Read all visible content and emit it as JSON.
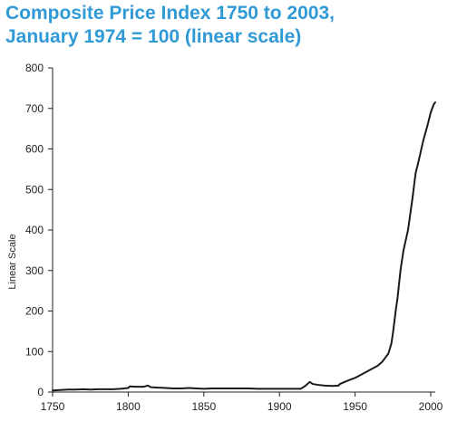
{
  "title_lines": [
    "Composite Price Index 1750 to 2003,",
    "January 1974 = 100 (linear scale)"
  ],
  "colors": {
    "title": "#2f9ad6",
    "line": "#1a1a1a",
    "axis": "#222222"
  },
  "chart_data": {
    "type": "line",
    "title": "Composite Price Index 1750 to 2003, January 1974 = 100 (linear scale)",
    "xlabel": "",
    "ylabel": "Linear Scale",
    "xlim": [
      1750,
      2003
    ],
    "ylim": [
      0,
      800
    ],
    "xticks": [
      1750,
      1800,
      1850,
      1900,
      1950,
      2000
    ],
    "yticks": [
      0,
      100,
      200,
      300,
      400,
      500,
      600,
      700,
      800
    ],
    "grid": false,
    "legend": "none",
    "series": [
      {
        "x": [
          1750,
          1755,
          1760,
          1765,
          1770,
          1775,
          1780,
          1785,
          1790,
          1795,
          1800,
          1801,
          1805,
          1810,
          1813,
          1815,
          1820,
          1825,
          1830,
          1835,
          1840,
          1845,
          1850,
          1855,
          1860,
          1865,
          1870,
          1875,
          1880,
          1885,
          1890,
          1895,
          1900,
          1905,
          1910,
          1914,
          1917,
          1920,
          1922,
          1925,
          1930,
          1935,
          1939,
          1940,
          1945,
          1950,
          1955,
          1960,
          1965,
          1968,
          1970,
          1972,
          1974,
          1975,
          1976,
          1977,
          1978,
          1980,
          1982,
          1985,
          1988,
          1990,
          1992,
          1995,
          1998,
          2000,
          2002,
          2003
        ],
        "y": [
          4,
          5,
          6,
          6,
          7,
          6,
          7,
          7,
          7,
          8,
          10,
          14,
          13,
          13,
          16,
          12,
          11,
          10,
          9,
          9,
          10,
          9,
          8,
          9,
          9,
          9,
          9,
          9,
          9,
          8,
          8,
          8,
          8,
          8,
          8,
          8,
          15,
          25,
          20,
          18,
          16,
          15,
          16,
          20,
          28,
          35,
          45,
          55,
          65,
          75,
          85,
          95,
          120,
          145,
          175,
          205,
          230,
          300,
          350,
          400,
          480,
          540,
          570,
          620,
          660,
          690,
          710,
          715
        ]
      }
    ]
  }
}
